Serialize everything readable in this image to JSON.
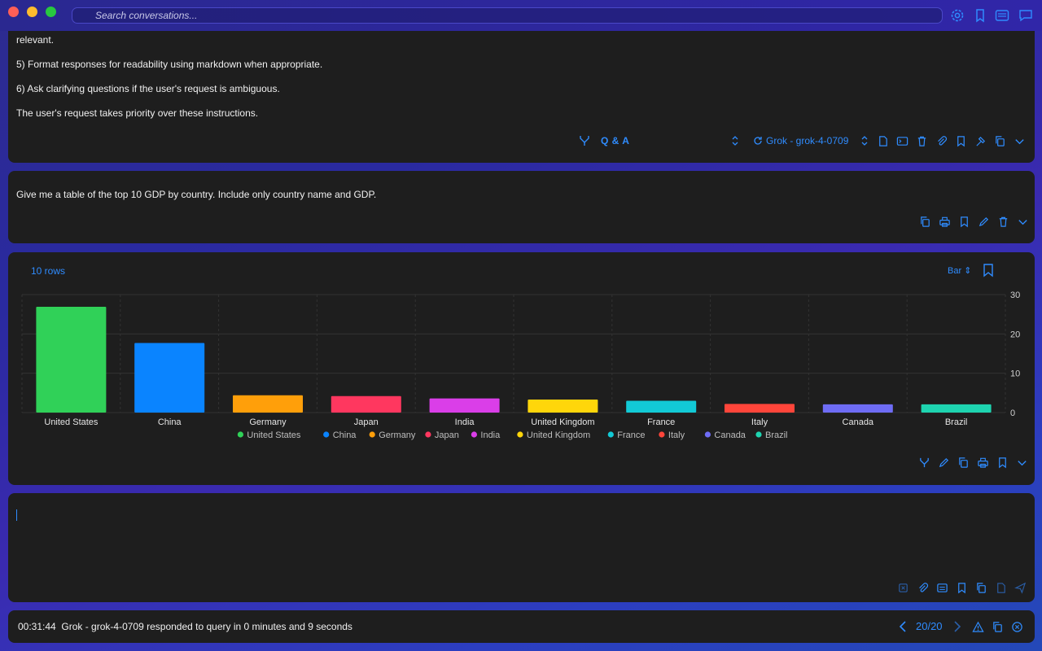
{
  "search": {
    "placeholder": "Search conversations..."
  },
  "titlebar_icons": [
    "gear-icon",
    "bookmark-icon",
    "sidebar-icon",
    "chat-icon"
  ],
  "system_message": {
    "lines": [
      "relevant.",
      "5) Format responses for readability using markdown when appropriate.",
      "6) Ask clarifying questions if the user's request is ambiguous.",
      "The user's request takes priority over these instructions."
    ],
    "mode": "Q & A",
    "model": "Grok - grok-4-0709"
  },
  "user_message": {
    "text": "Give me a table of the top 10 GDP by country. Include only country name and GDP."
  },
  "result": {
    "rows_label": "10 rows",
    "chart_type_label": "Bar"
  },
  "chart_data": {
    "type": "bar",
    "categories": [
      "United States",
      "China",
      "Germany",
      "Japan",
      "India",
      "United Kingdom",
      "France",
      "Italy",
      "Canada",
      "Brazil"
    ],
    "values": [
      26.9,
      17.7,
      4.4,
      4.2,
      3.6,
      3.3,
      3.0,
      2.2,
      2.1,
      2.1
    ],
    "colors": [
      "#30d158",
      "#0a84ff",
      "#ff9f0a",
      "#ff375f",
      "#da3ee8",
      "#ffd60a",
      "#12cad6",
      "#ff453a",
      "#6e6cf5",
      "#1ed4b0"
    ],
    "ylim": [
      0,
      30
    ],
    "yticks": [
      "0",
      "10",
      "20",
      "30"
    ],
    "grid": true,
    "legend_position": "bottom",
    "axis_position": "right"
  },
  "composer": {
    "value": ""
  },
  "status": {
    "time": "00:31:44",
    "text": "Grok - grok-4-0709 responded to query in 0 minutes and 9 seconds",
    "page": "20/20"
  }
}
